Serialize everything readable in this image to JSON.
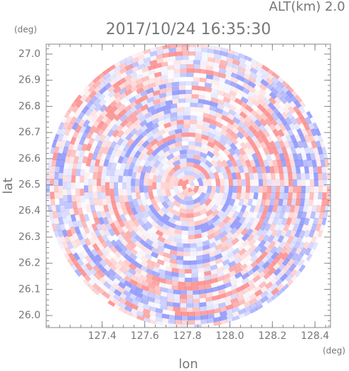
{
  "chart_data": {
    "type": "radar-field",
    "title": "2017/10/24 16:35:30",
    "subtitle": "ALT(km) 2.0",
    "x_label": "lon",
    "y_label": "lat",
    "x_unit": "(deg)",
    "y_unit": "(deg)",
    "xlim": [
      127.137,
      128.473
    ],
    "ylim": [
      25.954,
      27.038
    ],
    "xticks": [
      127.4,
      127.6,
      127.8,
      {
        "value": 128,
        "label": "128.0"
      },
      128.2,
      128.4
    ],
    "yticks": [
      {
        "value": 26,
        "label": "26.0"
      },
      26.1,
      26.2,
      26.3,
      26.4,
      26.5,
      26.6,
      26.7,
      26.8,
      26.9,
      {
        "value": 27,
        "label": "27.0"
      }
    ]
  }
}
